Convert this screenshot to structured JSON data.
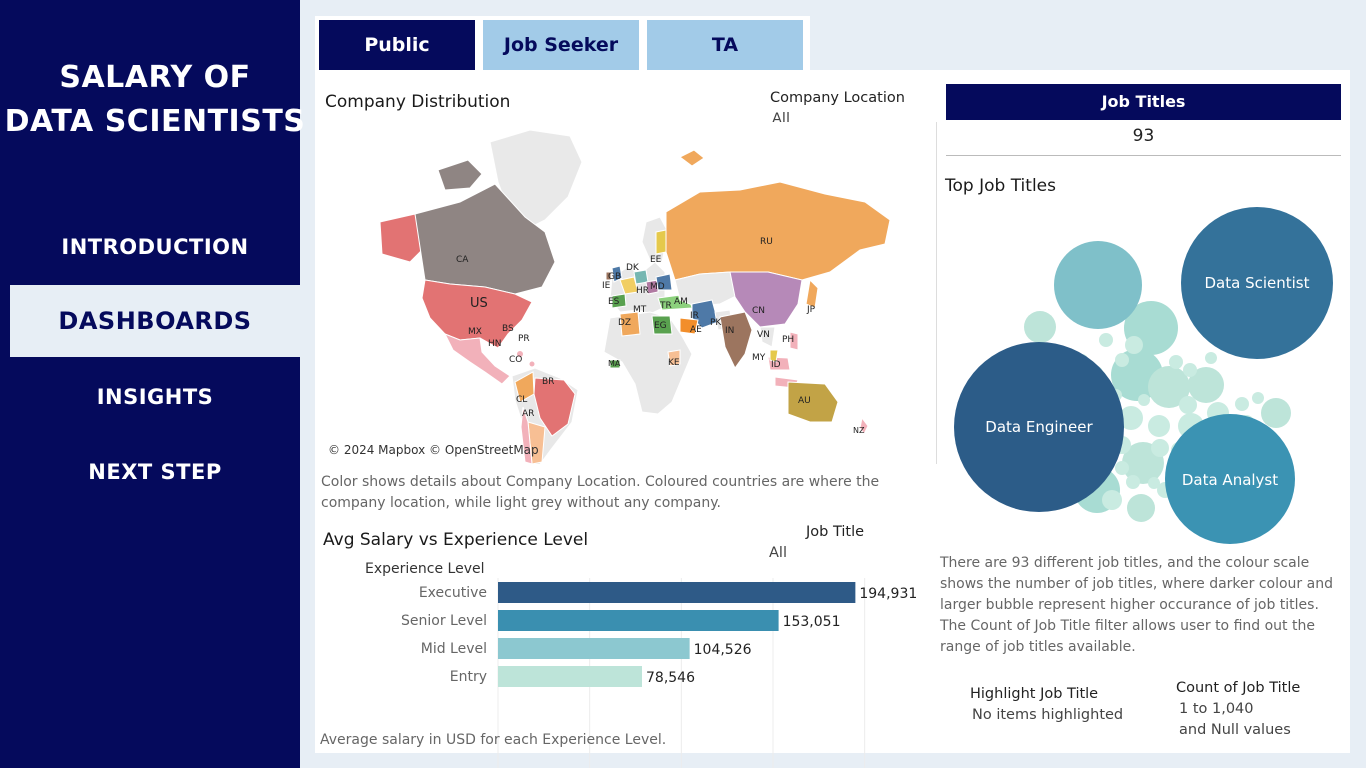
{
  "sidebar": {
    "title_line1": "SALARY OF",
    "title_line2": "DATA SCIENTISTS",
    "items": [
      {
        "label": "INTRODUCTION",
        "active": false
      },
      {
        "label": "DASHBOARDS",
        "active": true
      },
      {
        "label": "INSIGHTS",
        "active": false
      },
      {
        "label": "NEXT STEP",
        "active": false
      }
    ]
  },
  "tabs": [
    {
      "label": "Public",
      "active": true
    },
    {
      "label": "Job Seeker",
      "active": false
    },
    {
      "label": "TA",
      "active": false
    }
  ],
  "map_section": {
    "title": "Company Distribution",
    "filter_label": "Company Location",
    "filter_value": "All",
    "credit": "© 2024 Mapbox © OpenStreetMap",
    "note": "Color shows details about Company Location. Coloured countries are where the company location, while light grey without any company.",
    "country_labels": [
      "CA",
      "US",
      "MX",
      "BS",
      "PR",
      "HN",
      "CO",
      "BR",
      "CL",
      "AR",
      "GB",
      "DK",
      "EE",
      "RU",
      "IE",
      "ES",
      "HR",
      "MD",
      "AM",
      "TR",
      "MT",
      "DZ",
      "EG",
      "IR",
      "PK",
      "AE",
      "IN",
      "CN",
      "JP",
      "VN",
      "PH",
      "MY",
      "ID",
      "KE",
      "MA",
      "AU",
      "NZ"
    ]
  },
  "bar_section": {
    "title": "Avg Salary vs Experience Level",
    "filter_label": "Job Title",
    "filter_value": "All",
    "note": "Average salary in USD for each Experience Level."
  },
  "chart_data": {
    "type": "bar",
    "orientation": "horizontal",
    "ylabel": "Experience Level",
    "categories": [
      "Executive",
      "Senior Level",
      "Mid Level",
      "Entry"
    ],
    "values": [
      194931,
      153051,
      104526,
      78546
    ],
    "value_labels": [
      "194,931",
      "153,051",
      "104,526",
      "78,546"
    ],
    "x_ticks": [
      "0K",
      "50K",
      "100K",
      "150K",
      "200K"
    ],
    "xlim": [
      0,
      240000
    ],
    "colors": [
      "#2e5a87",
      "#3a8fb0",
      "#8cc8d0",
      "#bde4d9"
    ]
  },
  "kpi": {
    "header": "Job Titles",
    "value": "93"
  },
  "bubble_section": {
    "title": "Top Job Titles",
    "labels": [
      "Data Scientist",
      "Data Engineer",
      "Data Analyst"
    ],
    "note": "There are 93 different job titles, and the colour scale shows the number of job titles, where darker colour and larger bubble represent higher occurance of job titles. The Count of Job Title filter allows user to find out the range of job titles available.",
    "highlight_label": "Highlight Job Title",
    "highlight_value": "No items highlighted",
    "count_label": "Count of Job Title",
    "count_value_line1": "1 to 1,040",
    "count_value_line2": "and Null values"
  },
  "colors": {
    "navy": "#050a5c",
    "tab_inactive": "#a2cbe8",
    "background": "#e7eef5"
  }
}
